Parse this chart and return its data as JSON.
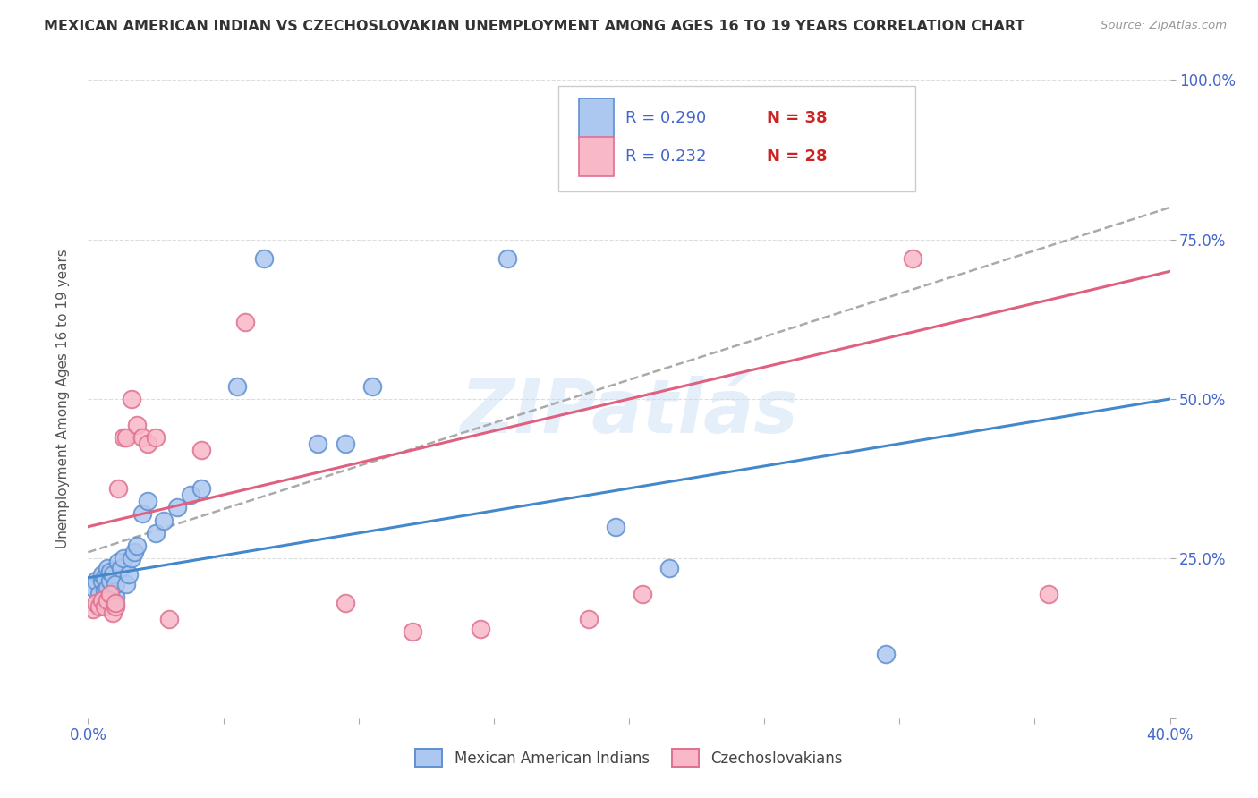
{
  "title": "MEXICAN AMERICAN INDIAN VS CZECHOSLOVAKIAN UNEMPLOYMENT AMONG AGES 16 TO 19 YEARS CORRELATION CHART",
  "source": "Source: ZipAtlas.com",
  "ylabel": "Unemployment Among Ages 16 to 19 years",
  "xlim": [
    0.0,
    0.4
  ],
  "ylim": [
    0.0,
    1.0
  ],
  "xtick_positions": [
    0.0,
    0.05,
    0.1,
    0.15,
    0.2,
    0.25,
    0.3,
    0.35,
    0.4
  ],
  "ytick_positions": [
    0.0,
    0.25,
    0.5,
    0.75,
    1.0
  ],
  "blue_face": "#adc8f0",
  "blue_edge": "#6090d0",
  "pink_face": "#f8b8c8",
  "pink_edge": "#e07090",
  "blue_line": "#4488cc",
  "pink_line": "#e06080",
  "dash_line": "#aaaaaa",
  "R_blue": 0.29,
  "N_blue": 38,
  "R_pink": 0.232,
  "N_pink": 28,
  "axis_label_color": "#4466cc",
  "title_color": "#333333",
  "source_color": "#999999",
  "watermark": "ZIPatlás",
  "watermark_color": "#c5ddf5",
  "legend_R_color": "#4466cc",
  "legend_N_color": "#cc2222",
  "blue_line_x0": 0.0,
  "blue_line_y0": 0.22,
  "blue_line_x1": 0.4,
  "blue_line_y1": 0.5,
  "pink_line_x0": 0.0,
  "pink_line_y0": 0.3,
  "pink_line_x1": 0.4,
  "pink_line_y1": 0.7,
  "dash_line_x0": 0.0,
  "dash_line_y0": 0.26,
  "dash_line_x1": 0.4,
  "dash_line_y1": 0.8,
  "blue_x": [
    0.002,
    0.003,
    0.004,
    0.005,
    0.005,
    0.006,
    0.006,
    0.007,
    0.007,
    0.008,
    0.008,
    0.009,
    0.01,
    0.01,
    0.011,
    0.012,
    0.013,
    0.014,
    0.015,
    0.016,
    0.017,
    0.018,
    0.02,
    0.022,
    0.025,
    0.028,
    0.033,
    0.038,
    0.042,
    0.055,
    0.065,
    0.085,
    0.095,
    0.105,
    0.155,
    0.195,
    0.215,
    0.295
  ],
  "blue_y": [
    0.205,
    0.215,
    0.195,
    0.215,
    0.225,
    0.2,
    0.22,
    0.205,
    0.235,
    0.215,
    0.23,
    0.225,
    0.19,
    0.21,
    0.245,
    0.235,
    0.25,
    0.21,
    0.225,
    0.25,
    0.26,
    0.27,
    0.32,
    0.34,
    0.29,
    0.31,
    0.33,
    0.35,
    0.36,
    0.52,
    0.72,
    0.43,
    0.43,
    0.52,
    0.72,
    0.3,
    0.235,
    0.1
  ],
  "pink_x": [
    0.002,
    0.003,
    0.004,
    0.005,
    0.006,
    0.007,
    0.008,
    0.009,
    0.01,
    0.01,
    0.011,
    0.013,
    0.014,
    0.016,
    0.018,
    0.02,
    0.022,
    0.025,
    0.03,
    0.042,
    0.058,
    0.095,
    0.12,
    0.145,
    0.185,
    0.205,
    0.305,
    0.355
  ],
  "pink_y": [
    0.17,
    0.18,
    0.175,
    0.185,
    0.175,
    0.185,
    0.195,
    0.165,
    0.175,
    0.18,
    0.36,
    0.44,
    0.44,
    0.5,
    0.46,
    0.44,
    0.43,
    0.44,
    0.155,
    0.42,
    0.62,
    0.18,
    0.135,
    0.14,
    0.155,
    0.195,
    0.72,
    0.195
  ]
}
